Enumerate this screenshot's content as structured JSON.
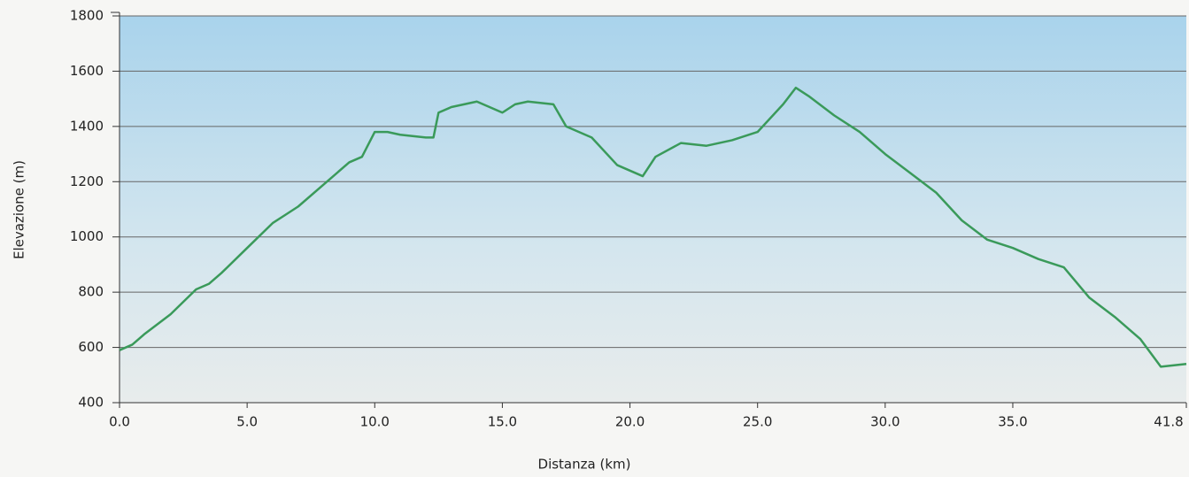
{
  "chart_data": {
    "type": "line",
    "xlabel": "Distanza (km)",
    "ylabel": "Elevazione (m)",
    "x": [
      0,
      0.5,
      1,
      2,
      3,
      3.5,
      4,
      5,
      6,
      6.5,
      7,
      8,
      9,
      9.5,
      10,
      10.5,
      11,
      12,
      12.3,
      12.5,
      13,
      14,
      15,
      15.5,
      16,
      17,
      17.5,
      18.5,
      19.5,
      20.5,
      21,
      22,
      23,
      24,
      25,
      26,
      26.5,
      27,
      28,
      29,
      30,
      31,
      32,
      33,
      34,
      35,
      36,
      37,
      38,
      39,
      40,
      40.8,
      41.8
    ],
    "series": [
      {
        "name": "Elevazione",
        "color": "#3a9a5a",
        "values": [
          590,
          610,
          650,
          720,
          810,
          830,
          870,
          960,
          1050,
          1080,
          1110,
          1190,
          1270,
          1290,
          1380,
          1380,
          1370,
          1360,
          1360,
          1450,
          1470,
          1490,
          1450,
          1480,
          1490,
          1480,
          1400,
          1360,
          1260,
          1220,
          1290,
          1340,
          1330,
          1350,
          1380,
          1480,
          1540,
          1510,
          1440,
          1380,
          1300,
          1230,
          1160,
          1060,
          990,
          960,
          920,
          890,
          780,
          710,
          630,
          530,
          540
        ]
      }
    ],
    "xlim": [
      0,
      41.8
    ],
    "xticks": [
      {
        "value": 0,
        "label": "0.0"
      },
      {
        "value": 5,
        "label": "5.0"
      },
      {
        "value": 10,
        "label": "10.0"
      },
      {
        "value": 15,
        "label": "15.0"
      },
      {
        "value": 20,
        "label": "20.0"
      },
      {
        "value": 25,
        "label": "25.0"
      },
      {
        "value": 30,
        "label": "30.0"
      },
      {
        "value": 35,
        "label": "35.0"
      },
      41.8
    ],
    "ylim": [
      400,
      1800
    ],
    "yticks": [
      400,
      600,
      800,
      1000,
      1200,
      1400,
      1600,
      1800
    ],
    "grid": true
  }
}
